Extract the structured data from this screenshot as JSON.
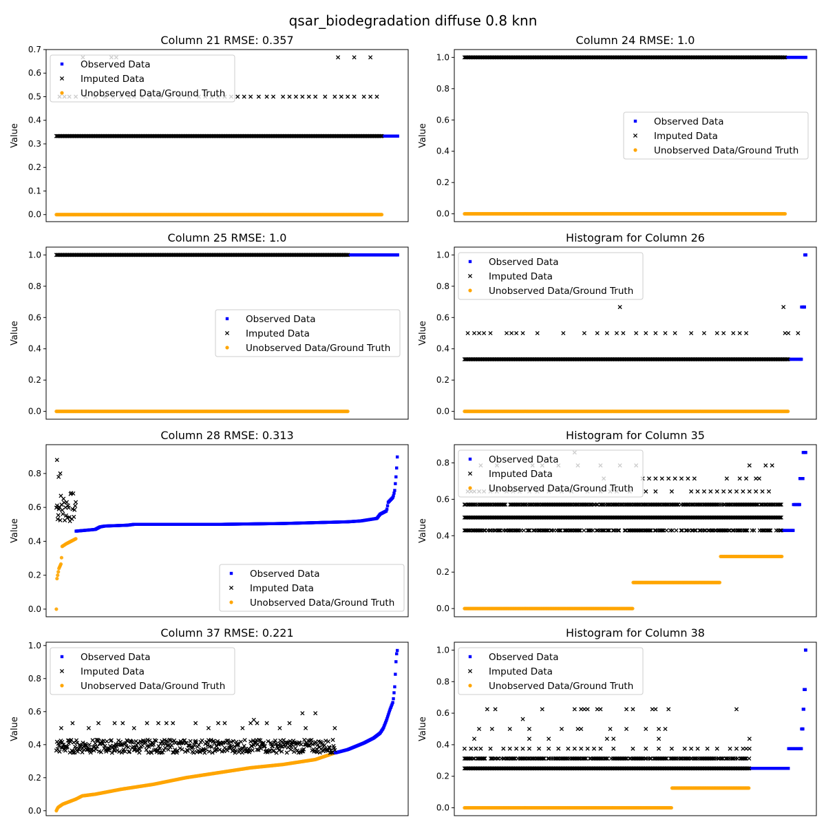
{
  "figure": {
    "title": "qsar_biodegradation diffuse 0.8 knn"
  },
  "legend_labels": [
    "Observed Data",
    "Imputed Data",
    "Unobserved Data/Ground Truth"
  ],
  "colors": {
    "observed": "#0000ff",
    "imputed": "#000000",
    "ground_truth": "#ffa500"
  },
  "chart_data": [
    {
      "type": "scatter",
      "title": "Column 21 RMSE: 0.357",
      "ylabel": "Value",
      "ylim": [
        -0.03,
        0.7
      ],
      "yticks": [
        "0.0",
        "0.1",
        "0.2",
        "0.3",
        "0.4",
        "0.5",
        "0.6",
        "0.7"
      ],
      "n_total": 1055,
      "legend": "upper-left",
      "ground_truth": [
        {
          "from": 0,
          "to": 1005,
          "y": 0.0
        }
      ],
      "imputed": [
        {
          "from": 0,
          "to": 1005,
          "y": 0.333
        }
      ],
      "imputed_extra": [
        {
          "y": 0.5,
          "x": [
            10,
            25,
            40,
            60,
            90,
            120,
            150,
            175,
            200,
            225,
            240,
            265,
            290,
            320,
            350,
            380,
            410,
            440,
            460,
            480,
            500,
            520,
            540,
            560,
            580,
            600,
            625,
            650,
            670,
            700,
            720,
            740,
            760,
            780,
            800,
            830,
            860,
            880,
            900,
            920,
            950,
            970,
            990
          ]
        },
        {
          "y": 0.667,
          "x": [
            82,
            170,
            185,
            870,
            920,
            970
          ]
        }
      ],
      "observed": [
        {
          "from": 1006,
          "to": 1054,
          "y": 0.333
        }
      ]
    },
    {
      "type": "scatter",
      "title": "Column 24 RMSE: 1.0",
      "ylabel": "Value",
      "ylim": [
        -0.05,
        1.05
      ],
      "yticks": [
        "0.0",
        "0.2",
        "0.4",
        "0.6",
        "0.8",
        "1.0"
      ],
      "n_total": 1055,
      "legend": "center-right",
      "ground_truth": [
        {
          "from": 0,
          "to": 990,
          "y": 0.0
        }
      ],
      "imputed": [
        {
          "from": 0,
          "to": 990,
          "y": 1.0
        }
      ],
      "imputed_extra": [],
      "observed": [
        {
          "from": 991,
          "to": 1054,
          "y": 1.0
        }
      ]
    },
    {
      "type": "scatter",
      "title": "Column 25 RMSE: 1.0",
      "ylabel": "Value",
      "ylim": [
        -0.05,
        1.05
      ],
      "yticks": [
        "0.0",
        "0.2",
        "0.4",
        "0.6",
        "0.8",
        "1.0"
      ],
      "n_total": 1055,
      "legend": "center-right",
      "ground_truth": [
        {
          "from": 0,
          "to": 900,
          "y": 0.0
        }
      ],
      "imputed": [
        {
          "from": 0,
          "to": 900,
          "y": 1.0
        }
      ],
      "imputed_extra": [],
      "observed": [
        {
          "from": 901,
          "to": 1054,
          "y": 1.0
        }
      ]
    },
    {
      "type": "scatter",
      "title": "Histogram for Column 26",
      "ylabel": "Value",
      "ylim": [
        -0.05,
        1.05
      ],
      "yticks": [
        "0.0",
        "0.2",
        "0.4",
        "0.6",
        "0.8",
        "1.0"
      ],
      "n_total": 1055,
      "legend": "upper-left",
      "ground_truth": [
        {
          "from": 0,
          "to": 1000,
          "y": 0.0
        }
      ],
      "imputed": [
        {
          "from": 0,
          "to": 1000,
          "y": 0.333
        }
      ],
      "imputed_extra": [
        {
          "y": 0.5,
          "x": [
            10,
            30,
            45,
            60,
            80,
            130,
            145,
            160,
            180,
            225,
            305,
            370,
            410,
            440,
            470,
            490,
            530,
            560,
            590,
            620,
            650,
            700,
            740,
            780,
            800,
            830,
            850,
            870,
            990,
            1000,
            1030
          ]
        },
        {
          "y": 0.667,
          "x": [
            480,
            985
          ]
        }
      ],
      "observed": [
        {
          "from": 1001,
          "to": 1040,
          "y": 0.333
        },
        {
          "from": 1041,
          "to": 1050,
          "y": 0.667
        },
        {
          "from": 1051,
          "to": 1054,
          "y": 1.0
        }
      ]
    },
    {
      "type": "scatter",
      "title": "Column 28 RMSE: 0.313",
      "ylabel": "Value",
      "ylim": [
        -0.045,
        0.97
      ],
      "yticks": [
        "0.0",
        "0.2",
        "0.4",
        "0.6",
        "0.8"
      ],
      "n_total": 1055,
      "legend": "lower-right",
      "ground_truth_curve": {
        "from": 0,
        "to": 60,
        "points": [
          [
            0,
            0.0
          ],
          [
            1,
            0.17
          ],
          [
            4,
            0.2
          ],
          [
            8,
            0.24
          ],
          [
            15,
            0.27
          ],
          [
            18,
            0.37
          ],
          [
            30,
            0.385
          ],
          [
            50,
            0.405
          ],
          [
            60,
            0.415
          ]
        ]
      },
      "imputed_cloud": {
        "from": 0,
        "to": 60,
        "center": 0.6,
        "spread": 0.09
      },
      "imputed_extra": [
        {
          "y": 0.88,
          "x": [
            2
          ]
        },
        {
          "y": 0.8,
          "x": [
            12
          ]
        },
        {
          "y": 0.78,
          "x": [
            7
          ]
        }
      ],
      "observed_curve": {
        "from": 61,
        "to": 1054,
        "points": [
          [
            61,
            0.46
          ],
          [
            120,
            0.47
          ],
          [
            135,
            0.485
          ],
          [
            150,
            0.49
          ],
          [
            220,
            0.495
          ],
          [
            240,
            0.5
          ],
          [
            500,
            0.5
          ],
          [
            700,
            0.505
          ],
          [
            900,
            0.515
          ],
          [
            940,
            0.52
          ],
          [
            990,
            0.535
          ],
          [
            1000,
            0.56
          ],
          [
            1020,
            0.58
          ],
          [
            1025,
            0.63
          ],
          [
            1040,
            0.66
          ],
          [
            1045,
            0.7
          ],
          [
            1050,
            0.8
          ],
          [
            1054,
            0.93
          ]
        ]
      }
    },
    {
      "type": "scatter",
      "title": "Histogram for Column 35",
      "ylabel": "Value",
      "ylim": [
        -0.045,
        0.9
      ],
      "yticks": [
        "0.0",
        "0.2",
        "0.4",
        "0.6",
        "0.8"
      ],
      "n_total": 1055,
      "legend": "upper-left",
      "ground_truth": [
        {
          "from": 0,
          "to": 520,
          "y": 0.0
        },
        {
          "from": 521,
          "to": 790,
          "y": 0.143
        },
        {
          "from": 791,
          "to": 980,
          "y": 0.286
        }
      ],
      "imputed": [
        {
          "from": 0,
          "to": 980,
          "y": 0.5
        }
      ],
      "imputed_extra": [
        {
          "y": 0.571,
          "x": [
            0,
            980
          ],
          "density": 0.85
        },
        {
          "y": 0.429,
          "x": [
            0,
            980
          ],
          "density": 0.6
        },
        {
          "y": 0.643,
          "x": [
            10,
            20,
            30,
            45,
            60,
            80,
            100,
            130,
            150,
            170,
            200,
            225,
            260,
            300,
            330,
            380,
            420,
            450,
            470,
            510,
            560,
            590,
            640,
            700,
            720,
            740,
            760,
            780,
            800,
            820,
            840,
            860,
            880,
            900,
            920,
            940
          ]
        },
        {
          "y": 0.714,
          "x": [
            430,
            550,
            570,
            590,
            610,
            630,
            650,
            670,
            690,
            710,
            810,
            850,
            870,
            900,
            910
          ]
        },
        {
          "y": 0.786,
          "x": [
            50,
            100,
            210,
            240,
            290,
            350,
            420,
            480,
            530,
            880,
            930,
            950
          ]
        },
        {
          "y": 0.857,
          "x": [
            340
          ]
        }
      ],
      "observed": [
        {
          "from": 981,
          "to": 1015,
          "y": 0.429
        },
        {
          "from": 1016,
          "to": 1035,
          "y": 0.571
        },
        {
          "from": 1036,
          "to": 1045,
          "y": 0.714
        },
        {
          "from": 1046,
          "to": 1054,
          "y": 0.857
        }
      ]
    },
    {
      "type": "scatter",
      "title": "Column 37 RMSE: 0.221",
      "ylabel": "Value",
      "ylim": [
        -0.03,
        1.02
      ],
      "yticks": [
        "0.0",
        "0.2",
        "0.4",
        "0.6",
        "0.8",
        "1.0"
      ],
      "n_total": 1055,
      "legend": "upper-left",
      "ground_truth_curve": {
        "from": 0,
        "to": 860,
        "points": [
          [
            0,
            0.0
          ],
          [
            5,
            0.02
          ],
          [
            20,
            0.04
          ],
          [
            60,
            0.07
          ],
          [
            80,
            0.09
          ],
          [
            120,
            0.1
          ],
          [
            200,
            0.13
          ],
          [
            300,
            0.16
          ],
          [
            400,
            0.2
          ],
          [
            500,
            0.23
          ],
          [
            600,
            0.26
          ],
          [
            700,
            0.28
          ],
          [
            800,
            0.31
          ],
          [
            860,
            0.35
          ]
        ]
      },
      "imputed_cloud": {
        "from": 0,
        "to": 860,
        "center": 0.39,
        "spread": 0.04
      },
      "imputed_extra": [
        {
          "y": 0.53,
          "x": [
            50,
            130,
            180,
            205,
            280,
            315,
            340,
            360,
            430,
            500,
            520,
            600,
            620,
            650,
            720
          ]
        },
        {
          "y": 0.59,
          "x": [
            760,
            800
          ]
        },
        {
          "y": 0.55,
          "x": [
            610
          ]
        },
        {
          "y": 0.5,
          "x": [
            15,
            100,
            240,
            470,
            575,
            690,
            770,
            860
          ]
        }
      ],
      "observed_curve": {
        "from": 861,
        "to": 1054,
        "points": [
          [
            861,
            0.35
          ],
          [
            900,
            0.37
          ],
          [
            950,
            0.41
          ],
          [
            980,
            0.44
          ],
          [
            1000,
            0.47
          ],
          [
            1010,
            0.5
          ],
          [
            1020,
            0.55
          ],
          [
            1030,
            0.61
          ],
          [
            1040,
            0.66
          ],
          [
            1045,
            0.75
          ],
          [
            1050,
            0.94
          ],
          [
            1054,
            0.98
          ]
        ]
      }
    },
    {
      "type": "scatter",
      "title": "Histogram for Column 38",
      "ylabel": "Value",
      "ylim": [
        -0.05,
        1.05
      ],
      "yticks": [
        "0.0",
        "0.2",
        "0.4",
        "0.6",
        "0.8",
        "1.0"
      ],
      "n_total": 1055,
      "legend": "upper-left",
      "ground_truth": [
        {
          "from": 0,
          "to": 640,
          "y": 0.0
        },
        {
          "from": 641,
          "to": 880,
          "y": 0.125
        }
      ],
      "imputed": [
        {
          "from": 0,
          "to": 880,
          "y": 0.25
        }
      ],
      "imputed_extra": [
        {
          "y": 0.3125,
          "x": [
            0,
            880
          ],
          "density": 0.7
        },
        {
          "y": 0.375,
          "x": [
            0,
            20,
            35,
            50,
            80,
            120,
            140,
            160,
            180,
            200,
            230,
            260,
            290,
            320,
            340,
            360,
            380,
            400,
            420,
            460,
            520,
            560,
            600,
            640,
            680,
            700,
            720,
            750,
            780,
            820,
            840,
            860,
            870,
            880
          ]
        },
        {
          "y": 0.4375,
          "x": [
            30,
            200,
            260,
            440,
            460,
            600,
            880
          ]
        },
        {
          "y": 0.5,
          "x": [
            45,
            85,
            140,
            200,
            300,
            350,
            360,
            450,
            500,
            560,
            600,
            620
          ]
        },
        {
          "y": 0.5625,
          "x": [
            180
          ]
        },
        {
          "y": 0.625,
          "x": [
            70,
            95,
            240,
            340,
            360,
            370,
            380,
            410,
            420,
            500,
            520,
            580,
            590,
            630,
            840
          ]
        }
      ],
      "observed": [
        {
          "from": 881,
          "to": 1000,
          "y": 0.25
        },
        {
          "from": 1001,
          "to": 1040,
          "y": 0.375
        },
        {
          "from": 1041,
          "to": 1045,
          "y": 0.5
        },
        {
          "from": 1046,
          "to": 1048,
          "y": 0.625
        },
        {
          "from": 1049,
          "to": 1052,
          "y": 0.75
        },
        {
          "from": 1053,
          "to": 1054,
          "y": 1.0
        }
      ]
    }
  ]
}
